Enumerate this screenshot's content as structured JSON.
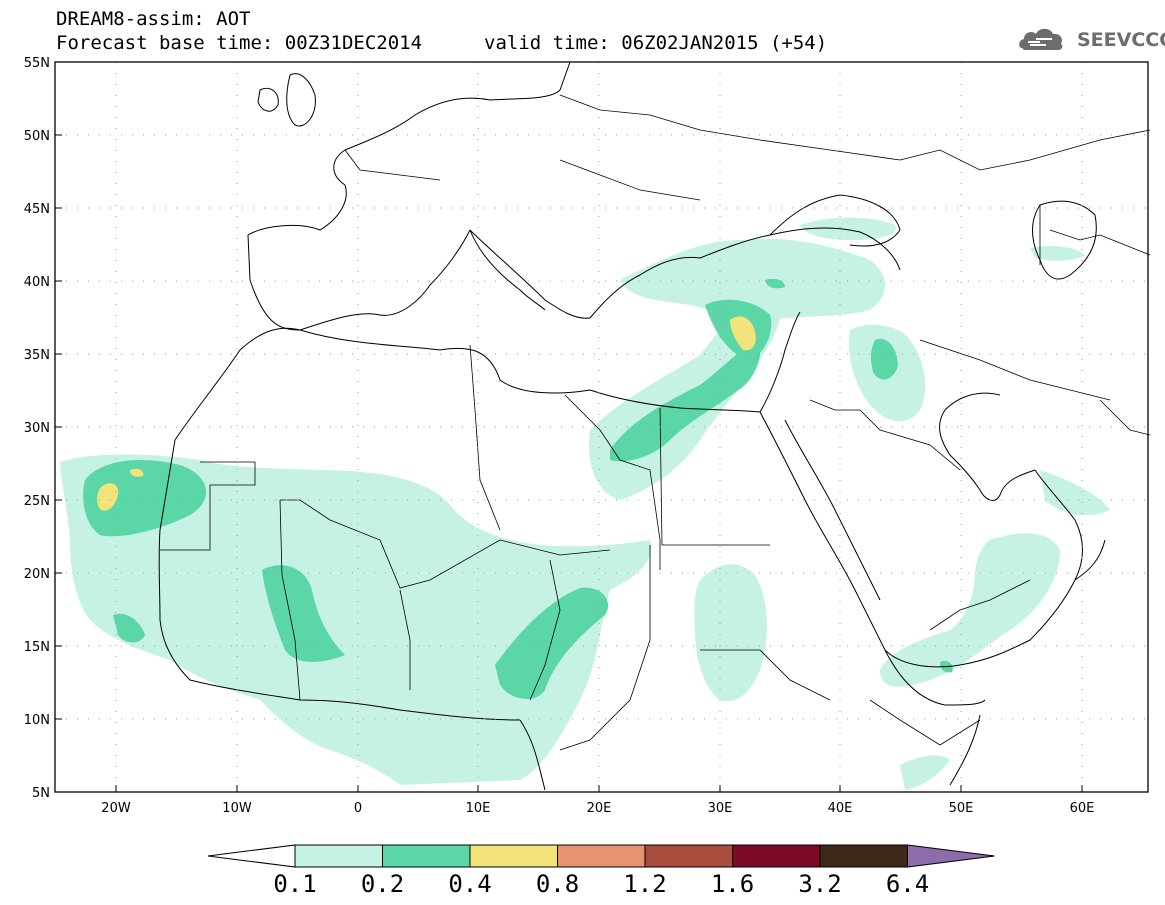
{
  "header": {
    "title": "DREAM8-assim: AOT",
    "base_time": "Forecast base time: 00Z31DEC2014",
    "valid_time": "valid time: 06Z02JAN2015 (+54)"
  },
  "logo": {
    "text": "SEEVCCC",
    "icon": "cloud-logo-icon"
  },
  "map": {
    "lat_labels": [
      "55N",
      "50N",
      "45N",
      "40N",
      "35N",
      "30N",
      "25N",
      "20N",
      "15N",
      "10N",
      "5N"
    ],
    "lon_labels": [
      "20W",
      "10W",
      "0",
      "10E",
      "20E",
      "30E",
      "40E",
      "50E",
      "60E"
    ],
    "lat_range": [
      5,
      55
    ],
    "lon_range": [
      -25,
      65
    ],
    "gridlines": "dotted"
  },
  "colorbar": {
    "levels": [
      "0.1",
      "0.2",
      "0.4",
      "0.8",
      "1.2",
      "1.6",
      "3.2",
      "6.4"
    ],
    "colors": [
      "#ffffff",
      "#c6f2e6",
      "#5bd6a6",
      "#f2e47a",
      "#e79270",
      "#a94d3e",
      "#7d0a28",
      "#3d2817",
      "#8e6cab"
    ]
  }
}
